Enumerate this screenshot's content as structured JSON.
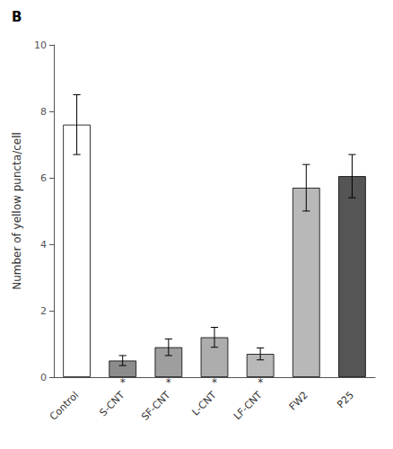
{
  "chart_data": {
    "type": "bar",
    "title": "B",
    "categories": [
      "Control",
      "S-CNT",
      "SF-CNT",
      "L-CNT",
      "LF-CNT",
      "FW2",
      "P25"
    ],
    "values": [
      7.6,
      0.5,
      0.9,
      1.2,
      0.7,
      5.7,
      6.05
    ],
    "errors": [
      0.9,
      0.15,
      0.25,
      0.3,
      0.18,
      0.7,
      0.65
    ],
    "colors": [
      "#ffffff",
      "#8c8c8c",
      "#9e9e9e",
      "#adadad",
      "#b8b8b8",
      "#b8b8b8",
      "#555555"
    ],
    "ylabel": "Number of yellow puncta/cell",
    "ylim": [
      0,
      10
    ],
    "yticks": [
      0,
      2,
      4,
      6,
      8,
      10
    ],
    "grid": false,
    "annotations": [
      {
        "category": "S-CNT",
        "text": "*"
      },
      {
        "category": "SF-CNT",
        "text": "*"
      },
      {
        "category": "L-CNT",
        "text": "*"
      },
      {
        "category": "LF-CNT",
        "text": "*"
      }
    ]
  }
}
